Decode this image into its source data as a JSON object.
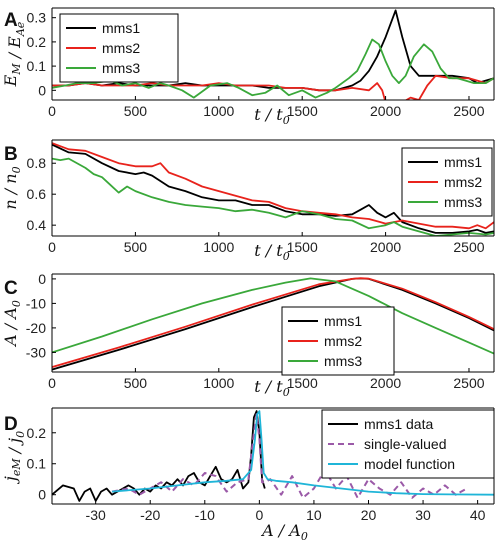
{
  "colors": {
    "mms1": "#000000",
    "mms2": "#e8231c",
    "mms3": "#3aa83a",
    "single_valued": "#9b5aa8",
    "model_function": "#1fb5d8"
  },
  "chart_data": [
    {
      "panel": "A",
      "type": "line",
      "ylabel": "E_M / E_Ae",
      "xlabel": "t / t_0",
      "xlim": [
        0,
        2650
      ],
      "ylim": [
        -0.04,
        0.34
      ],
      "xticks": [
        0,
        500,
        1000,
        1500,
        2000,
        2500
      ],
      "yticks": [
        0,
        0.1,
        0.2,
        0.3
      ],
      "ytick_labels": [
        "0",
        "0.1",
        "0.2",
        "0.3"
      ],
      "legend": "top-left",
      "series": [
        {
          "name": "mms1",
          "color_key": "mms1",
          "x": [
            0,
            100,
            200,
            300,
            400,
            500,
            600,
            700,
            800,
            900,
            1000,
            1100,
            1200,
            1300,
            1400,
            1500,
            1600,
            1700,
            1750,
            1800,
            1850,
            1900,
            1950,
            2000,
            2060,
            2100,
            2150,
            2200,
            2300,
            2400,
            2500,
            2550,
            2600,
            2650
          ],
          "y": [
            0.02,
            0.02,
            0.03,
            0.02,
            0.03,
            0.02,
            0.02,
            0.02,
            0.03,
            0.02,
            0.02,
            0.02,
            0.02,
            0.01,
            0.01,
            0.01,
            0.0,
            0.0,
            0.01,
            0.02,
            0.04,
            0.08,
            0.14,
            0.22,
            0.33,
            0.22,
            0.1,
            0.06,
            0.06,
            0.06,
            0.05,
            0.03,
            0.04,
            0.05
          ]
        },
        {
          "name": "mms2",
          "color_key": "mms2",
          "x": [
            0,
            100,
            200,
            300,
            400,
            500,
            600,
            700,
            800,
            900,
            1000,
            1100,
            1200,
            1300,
            1400,
            1500,
            1600,
            1700,
            1800,
            1900,
            1950,
            1980,
            2000,
            2050,
            2100,
            2150,
            2200,
            2250,
            2300,
            2400,
            2500,
            2550,
            2600,
            2650
          ],
          "y": [
            0.02,
            0.02,
            0.03,
            0.02,
            0.02,
            0.02,
            0.03,
            0.02,
            0.02,
            0.02,
            0.03,
            0.02,
            0.02,
            0.02,
            0.01,
            0.01,
            0.0,
            0.0,
            0.01,
            0.0,
            0.03,
            0.0,
            -0.05,
            -0.05,
            -0.05,
            -0.03,
            -0.04,
            0.02,
            0.06,
            0.05,
            0.05,
            0.04,
            0.03,
            0.05
          ]
        },
        {
          "name": "mms3",
          "color_key": "mms3",
          "x": [
            0,
            80,
            150,
            250,
            350,
            420,
            500,
            580,
            650,
            700,
            780,
            850,
            950,
            1050,
            1120,
            1200,
            1280,
            1350,
            1420,
            1500,
            1580,
            1650,
            1700,
            1780,
            1830,
            1880,
            1920,
            1960,
            2000,
            2040,
            2080,
            2120,
            2170,
            2230,
            2280,
            2330,
            2380,
            2430,
            2480,
            2530,
            2600,
            2650
          ],
          "y": [
            0.01,
            0.02,
            0.03,
            0.03,
            0.04,
            0.02,
            0.03,
            0.01,
            0.03,
            0.02,
            0.0,
            -0.03,
            0.02,
            0.03,
            0.01,
            -0.02,
            -0.01,
            0.02,
            -0.02,
            0.0,
            -0.03,
            -0.01,
            0.01,
            0.05,
            0.08,
            0.15,
            0.21,
            0.19,
            0.12,
            0.06,
            0.03,
            0.06,
            0.14,
            0.19,
            0.16,
            0.09,
            0.05,
            0.05,
            0.04,
            0.03,
            0.03,
            0.05
          ]
        }
      ]
    },
    {
      "panel": "B",
      "type": "line",
      "ylabel": "n / n_0",
      "xlabel": "t / t_0",
      "xlim": [
        0,
        2650
      ],
      "ylim": [
        0.33,
        0.95
      ],
      "xticks": [
        0,
        500,
        1000,
        1500,
        2000,
        2500
      ],
      "yticks": [
        0.4,
        0.6,
        0.8
      ],
      "ytick_labels": [
        "0.4",
        "0.6",
        "0.8"
      ],
      "legend": "right",
      "series": [
        {
          "name": "mms1",
          "color_key": "mms1",
          "x": [
            0,
            100,
            200,
            300,
            400,
            500,
            550,
            600,
            700,
            800,
            900,
            1000,
            1100,
            1200,
            1300,
            1400,
            1500,
            1600,
            1700,
            1800,
            1850,
            1900,
            1950,
            2000,
            2050,
            2100,
            2200,
            2300,
            2400,
            2500,
            2550,
            2600,
            2650
          ],
          "y": [
            0.92,
            0.87,
            0.86,
            0.8,
            0.75,
            0.73,
            0.74,
            0.72,
            0.65,
            0.62,
            0.58,
            0.56,
            0.56,
            0.53,
            0.53,
            0.49,
            0.47,
            0.47,
            0.46,
            0.47,
            0.5,
            0.53,
            0.48,
            0.45,
            0.48,
            0.42,
            0.38,
            0.35,
            0.35,
            0.36,
            0.37,
            0.35,
            0.36
          ]
        },
        {
          "name": "mms2",
          "color_key": "mms2",
          "x": [
            0,
            100,
            200,
            300,
            400,
            450,
            500,
            600,
            650,
            700,
            800,
            900,
            1000,
            1100,
            1200,
            1300,
            1400,
            1500,
            1600,
            1700,
            1800,
            1900,
            2000,
            2100,
            2200,
            2300,
            2400,
            2500,
            2550,
            2600,
            2650
          ],
          "y": [
            0.93,
            0.89,
            0.88,
            0.84,
            0.8,
            0.79,
            0.78,
            0.78,
            0.8,
            0.74,
            0.7,
            0.65,
            0.62,
            0.59,
            0.56,
            0.55,
            0.51,
            0.49,
            0.48,
            0.47,
            0.45,
            0.44,
            0.41,
            0.43,
            0.41,
            0.39,
            0.39,
            0.38,
            0.4,
            0.38,
            0.42
          ]
        },
        {
          "name": "mms3",
          "color_key": "mms3",
          "x": [
            0,
            50,
            100,
            200,
            250,
            300,
            350,
            400,
            450,
            500,
            600,
            700,
            800,
            900,
            1000,
            1100,
            1200,
            1300,
            1400,
            1500,
            1600,
            1700,
            1800,
            1900,
            2000,
            2050,
            2100,
            2200,
            2300,
            2400,
            2500,
            2600,
            2650
          ],
          "y": [
            0.83,
            0.82,
            0.83,
            0.77,
            0.73,
            0.71,
            0.66,
            0.61,
            0.65,
            0.62,
            0.58,
            0.55,
            0.53,
            0.52,
            0.51,
            0.49,
            0.5,
            0.48,
            0.45,
            0.49,
            0.47,
            0.44,
            0.43,
            0.38,
            0.4,
            0.42,
            0.39,
            0.36,
            0.33,
            0.34,
            0.35,
            0.34,
            0.35
          ]
        }
      ]
    },
    {
      "panel": "C",
      "type": "line",
      "ylabel": "A / A_0",
      "xlabel": "t / t_0",
      "xlim": [
        0,
        2650
      ],
      "ylim": [
        -38,
        2
      ],
      "xticks": [
        0,
        500,
        1000,
        1500,
        2000,
        2500
      ],
      "yticks": [
        0,
        -10,
        -20,
        -30
      ],
      "ytick_labels": [
        "0",
        "-10",
        "-20",
        "-30"
      ],
      "legend": "bottom-right",
      "series": [
        {
          "name": "mms1",
          "color_key": "mms1",
          "x": [
            0,
            400,
            800,
            1200,
            1600,
            1800,
            1850,
            1900,
            2100,
            2300,
            2500,
            2650
          ],
          "y": [
            -37,
            -29,
            -20.5,
            -11.5,
            -3,
            0,
            0.2,
            0,
            -4.5,
            -10,
            -16,
            -21
          ]
        },
        {
          "name": "mms2",
          "color_key": "mms2",
          "x": [
            0,
            400,
            800,
            1200,
            1600,
            1800,
            1850,
            1900,
            2100,
            2300,
            2500,
            2650
          ],
          "y": [
            -36,
            -28,
            -19.5,
            -10.5,
            -2.2,
            0,
            0.3,
            0.1,
            -4,
            -9.5,
            -15.5,
            -20.5
          ]
        },
        {
          "name": "mms3",
          "color_key": "mms3",
          "x": [
            0,
            300,
            600,
            900,
            1200,
            1400,
            1550,
            1700,
            1900,
            2100,
            2300,
            2500,
            2650
          ],
          "y": [
            -30,
            -23.5,
            -16.5,
            -10,
            -4.5,
            -1.5,
            0.2,
            -1,
            -7,
            -14,
            -20,
            -26,
            -30.5
          ]
        }
      ]
    },
    {
      "panel": "D",
      "type": "line",
      "ylabel": "j_eM / j_0",
      "xlabel": "A / A_0",
      "xlim": [
        -38,
        43
      ],
      "ylim": [
        -0.03,
        0.28
      ],
      "xticks": [
        -30,
        -20,
        -10,
        0,
        10,
        20,
        30,
        40
      ],
      "yticks": [
        0,
        0.1,
        0.2
      ],
      "ytick_labels": [
        "0",
        "0.1",
        "0.2"
      ],
      "legend": "top-right",
      "series": [
        {
          "name": "mms1 data",
          "color_key": "mms1",
          "style": "solid",
          "x": [
            -38,
            -36,
            -34,
            -33,
            -32,
            -31,
            -30,
            -29,
            -28,
            -27,
            -26,
            -25,
            -24,
            -23,
            -22,
            -21,
            -20,
            -19,
            -18,
            -17,
            -16,
            -15,
            -14,
            -13,
            -12,
            -11,
            -10,
            -9,
            -8,
            -7,
            -6,
            -5,
            -4,
            -3,
            -2,
            -1.5,
            -1,
            -0.5,
            0,
            0.5,
            1
          ],
          "y": [
            0.0,
            0.03,
            0.02,
            -0.02,
            0.01,
            0.02,
            -0.02,
            0.01,
            0.02,
            0.0,
            0.01,
            0.02,
            0.03,
            0.02,
            0.0,
            0.02,
            0.01,
            0.03,
            0.02,
            0.04,
            0.03,
            0.05,
            0.03,
            0.06,
            0.07,
            0.04,
            0.03,
            0.06,
            0.09,
            0.05,
            0.04,
            0.05,
            0.08,
            0.02,
            0.04,
            0.13,
            0.25,
            0.27,
            0.2,
            0.05,
            0.02
          ]
        },
        {
          "name": "single-valued",
          "color_key": "single_valued",
          "style": "dashed",
          "x": [
            -27,
            -24,
            -22,
            -20,
            -18,
            -16,
            -14,
            -12,
            -10,
            -8,
            -6,
            -4,
            -2,
            -1,
            -0.5,
            0,
            0.5,
            1,
            2,
            4,
            6,
            8,
            10,
            12,
            14,
            16,
            18,
            20,
            22,
            24,
            26,
            28,
            30,
            32,
            34,
            36,
            38
          ],
          "y": [
            0.01,
            0.02,
            0.0,
            0.02,
            0.04,
            0.01,
            0.05,
            0.03,
            0.07,
            0.06,
            0.01,
            0.04,
            0.05,
            0.2,
            0.26,
            0.18,
            0.04,
            0.04,
            0.05,
            0.0,
            0.06,
            -0.01,
            0.02,
            0.08,
            0.02,
            0.06,
            -0.01,
            0.05,
            0.02,
            0.0,
            0.04,
            -0.01,
            0.02,
            0.0,
            0.03,
            0.0,
            0.02
          ]
        },
        {
          "name": "model function",
          "color_key": "model_function",
          "style": "solid",
          "x": [
            -27,
            -20,
            -15,
            -10,
            -6,
            -3,
            -1.5,
            -0.8,
            -0.4,
            0,
            0.4,
            0.8,
            1.5,
            3,
            6,
            10,
            15,
            20,
            25,
            30,
            35,
            43
          ],
          "y": [
            0.01,
            0.02,
            0.03,
            0.04,
            0.045,
            0.05,
            0.08,
            0.18,
            0.26,
            0.27,
            0.18,
            0.07,
            0.05,
            0.045,
            0.04,
            0.03,
            0.02,
            0.01,
            0.005,
            0.002,
            0.001,
            0.0
          ]
        }
      ]
    }
  ]
}
